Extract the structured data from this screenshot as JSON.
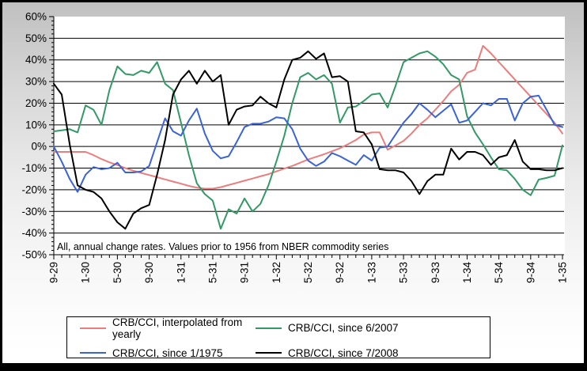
{
  "annotation": "All, annual change rates. Values prior to 1956 from NBER commodity series",
  "chart_data": {
    "type": "line",
    "title": "",
    "xlabel": "",
    "ylabel": "",
    "ylim": [
      -50,
      60
    ],
    "grid": true,
    "legend_position": "bottom",
    "annotation": "All, annual change rates. Values prior to 1956 from NBER commodity series",
    "y_ticks": [
      {
        "v": 60,
        "label": "60%"
      },
      {
        "v": 50,
        "label": "50%"
      },
      {
        "v": 40,
        "label": "40%"
      },
      {
        "v": 30,
        "label": "30%"
      },
      {
        "v": 20,
        "label": "20%"
      },
      {
        "v": 10,
        "label": "10%"
      },
      {
        "v": 0,
        "label": "0%"
      },
      {
        "v": -10,
        "label": "-10%"
      },
      {
        "v": -20,
        "label": "-20%"
      },
      {
        "v": -30,
        "label": "-30%"
      },
      {
        "v": -40,
        "label": "-40%"
      },
      {
        "v": -50,
        "label": "-50%"
      }
    ],
    "y_minor_tick_step": 2,
    "x_tick_labels": [
      "9-29",
      "1-30",
      "5-30",
      "9-30",
      "1-31",
      "5-31",
      "9-31",
      "1-32",
      "5-32",
      "9-32",
      "1-33",
      "5-33",
      "9-33",
      "1-34",
      "5-34",
      "9-34",
      "1-35"
    ],
    "x_points_per_label": 4,
    "n_points": 65,
    "series": [
      {
        "name": "CRB/CCI, interpolated from yearly",
        "color": "#ec7d7d",
        "values": [
          -2.5,
          -2.5,
          -2.5,
          -2.5,
          -2.5,
          -4,
          -5.8,
          -7.3,
          -8.6,
          -10,
          -11.2,
          -12.2,
          -13.2,
          -14.2,
          -15.2,
          -16.2,
          -17.2,
          -18.2,
          -19,
          -19.5,
          -19.5,
          -18.8,
          -17.8,
          -16.8,
          -15.8,
          -14.8,
          -13.8,
          -12.8,
          -11.5,
          -10.2,
          -9,
          -7.5,
          -6,
          -4.8,
          -3.6,
          -2.2,
          -0.8,
          1,
          3,
          5.5,
          6.5,
          6.5,
          -1.5,
          0.5,
          2.6,
          6,
          10,
          13,
          17,
          21,
          25.5,
          28.5,
          34,
          35.5,
          46.5,
          43,
          39,
          35,
          31,
          27,
          23,
          19,
          15,
          11,
          6
        ]
      },
      {
        "name": "CRB/CCI, since 6/2007",
        "color": "#339966",
        "values": [
          7,
          7.5,
          8,
          6.5,
          19,
          17,
          10,
          26,
          37,
          33.5,
          33,
          35,
          34,
          39,
          29,
          26,
          11,
          -4,
          -17,
          -22,
          -25,
          -38,
          -29,
          -31,
          -24,
          -30,
          -26.5,
          -18,
          -7,
          5,
          20,
          32,
          34,
          31,
          33,
          29,
          11,
          18,
          18.5,
          21,
          24,
          24.5,
          18,
          28,
          39,
          41,
          43,
          44,
          41.5,
          38,
          33,
          31,
          14,
          6.5,
          1,
          -5,
          -10.5,
          -11,
          -15,
          -20,
          -22.5,
          -15.3,
          -14.5,
          -13.5,
          0.5
        ]
      },
      {
        "name": "CRB/CCI, since 1/1975",
        "color": "#3b63d8",
        "values": [
          0,
          -7,
          -15,
          -21,
          -13,
          -9.5,
          -10.5,
          -10,
          -7.5,
          -12,
          -12,
          -11.5,
          -9,
          2,
          13,
          7,
          5,
          12,
          17.5,
          6,
          -2,
          -5.5,
          -4.5,
          2,
          9,
          10.5,
          10.5,
          11.5,
          13.5,
          13,
          8,
          -1,
          -6.5,
          -9,
          -7,
          -3,
          -4.5,
          -6.5,
          -8.5,
          -4,
          -6.5,
          -0.5,
          0,
          5.5,
          11,
          15,
          20,
          17,
          13.5,
          16.5,
          19.5,
          11,
          12,
          16,
          20,
          19,
          22,
          22,
          12,
          20,
          23,
          23.5,
          17,
          10,
          9
        ]
      },
      {
        "name": "CRB/CCI, since 7/2008",
        "color": "#000000",
        "values": [
          29,
          24,
          1,
          -18,
          -20,
          -21,
          -24,
          -30,
          -35,
          -38,
          -31,
          -28.5,
          -27,
          -13,
          3,
          24,
          31,
          35,
          29,
          35,
          30,
          33,
          10,
          17,
          18.5,
          19,
          23,
          20,
          18,
          31,
          40,
          41,
          44,
          40.5,
          43,
          32,
          32.5,
          30,
          7,
          6.5,
          1,
          -10.5,
          -11,
          -11,
          -12,
          -16,
          -22,
          -16,
          -13,
          -13,
          -1,
          -6,
          -2.5,
          -2.5,
          -4,
          -8.5,
          -5,
          -4,
          3,
          -7,
          -10.5,
          -10.5,
          -11,
          -11,
          -10
        ]
      }
    ]
  }
}
